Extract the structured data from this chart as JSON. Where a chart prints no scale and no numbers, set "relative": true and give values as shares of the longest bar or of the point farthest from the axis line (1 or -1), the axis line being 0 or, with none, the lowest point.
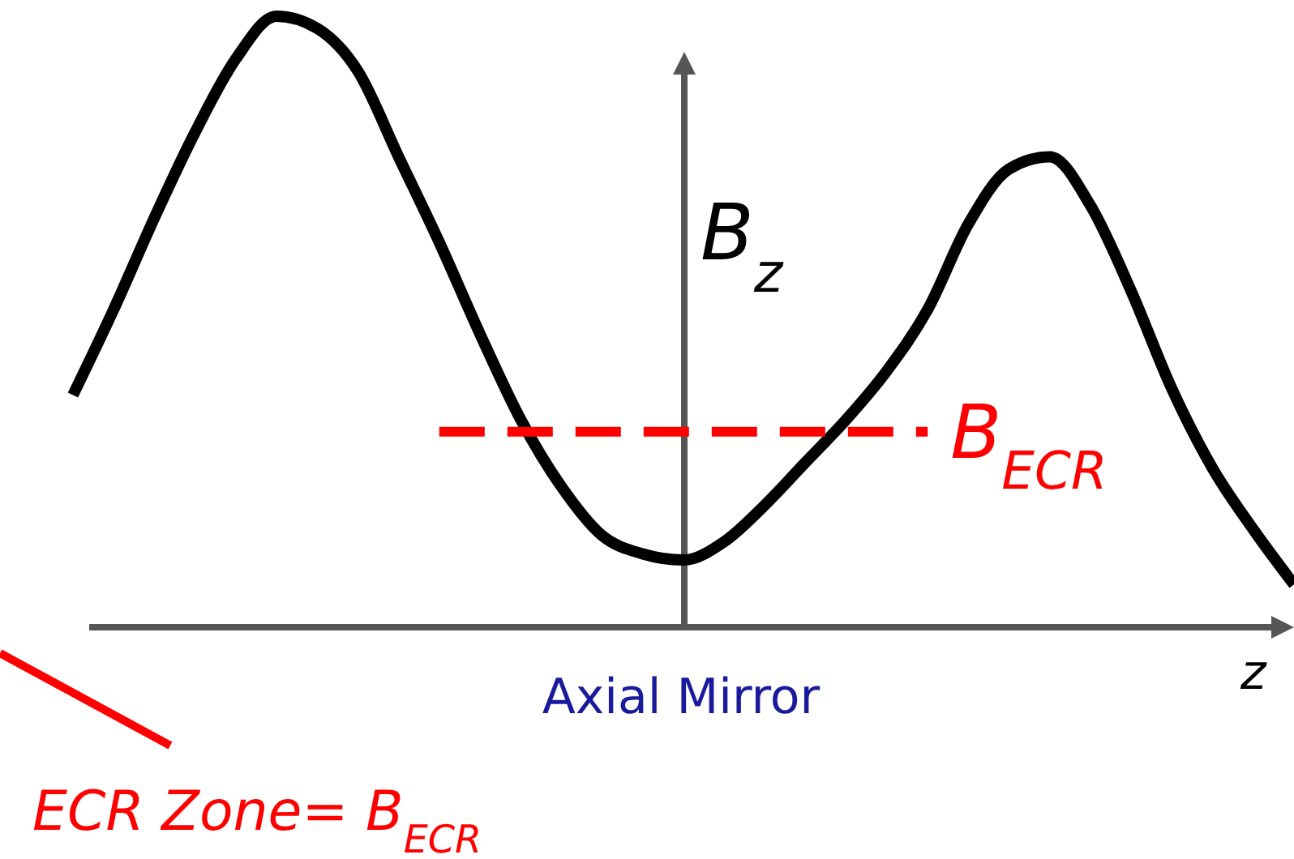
{
  "chart_data": {
    "type": "line",
    "relative": true,
    "xlabel": "z",
    "ylabel": "B$_{z}$",
    "categories": [
      null,
      null,
      null,
      null,
      null,
      null,
      null,
      null,
      null,
      null,
      null,
      null,
      null,
      null,
      null,
      null,
      null,
      null,
      null,
      null,
      null,
      null,
      null,
      null,
      null,
      null,
      null,
      null,
      null,
      null,
      null
    ],
    "series": [
      {
        "color": "#000000",
        "values": [
          0.38,
          0.52,
          0.67,
          0.81,
          0.93,
          1,
          0.98,
          0.91,
          0.77,
          0.63,
          0.48,
          0.34,
          0.23,
          0.15,
          0.12,
          0.11,
          0.14,
          0.2,
          0.27,
          0.34,
          0.42,
          0.52,
          0.66,
          0.75,
          0.77,
          0.69,
          0.55,
          0.39,
          0.26,
          0.16,
          0.07
        ]
      },
      {
        "name": "B$_{ECR}$",
        "color": "#ff0000",
        "line_style": "dashed",
        "values": [
          null,
          null,
          null,
          null,
          null,
          null,
          null,
          null,
          null,
          0.32,
          0.32,
          0.32,
          0.32,
          0.32,
          0.32,
          0.32,
          0.32,
          0.32,
          0.32,
          0.32,
          0.32,
          0.32,
          null,
          null,
          null,
          null,
          null,
          null,
          null,
          null,
          null
        ]
      }
    ],
    "annotations": [
      "Axial Mirror",
      "ECR Zone= B$_{ECR}$"
    ]
  }
}
